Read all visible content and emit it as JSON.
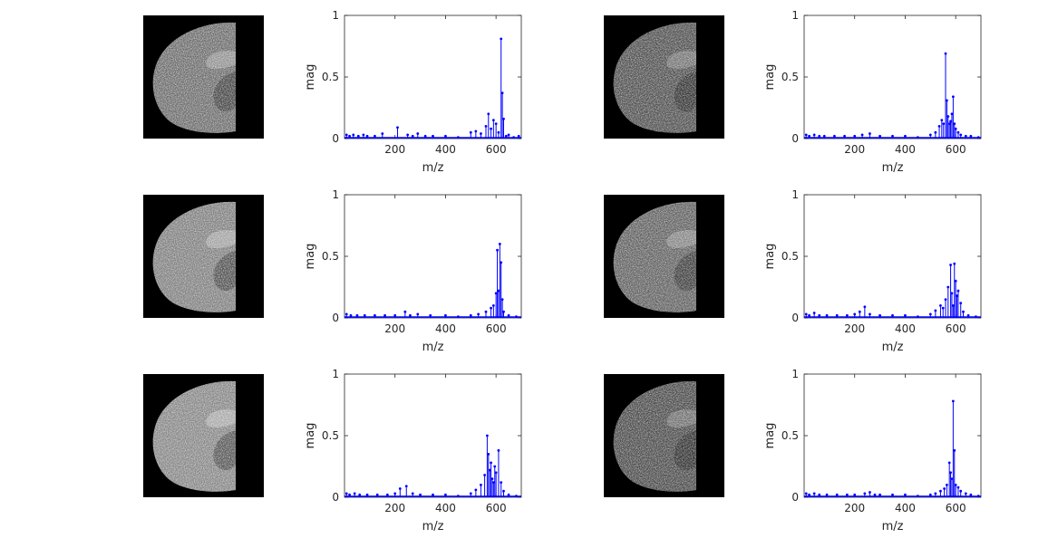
{
  "figure": {
    "panel_count": 6,
    "image_description_names": [
      "brain-slice-1",
      "brain-slice-2",
      "brain-slice-3",
      "brain-slice-4",
      "brain-slice-5",
      "brain-slice-6"
    ]
  },
  "axis_text": {
    "xlabel": "m/z",
    "ylabel": "mag",
    "xticks": [
      200,
      400,
      600
    ],
    "yticks": [
      0,
      0.5,
      1
    ],
    "ytick_labels": [
      "0",
      "0.5",
      "1"
    ]
  },
  "colors": {
    "stem": "#0000ff",
    "axis": "#262626",
    "image_bg": "#000000"
  },
  "chart_data": [
    {
      "type": "line",
      "style": "stem",
      "title": "",
      "xlabel": "m/z",
      "ylabel": "mag",
      "xlim": [
        0,
        700
      ],
      "ylim": [
        0,
        1
      ],
      "series": [
        {
          "x": [
            8,
            20,
            35,
            55,
            75,
            90,
            120,
            150,
            210,
            250,
            270,
            290,
            320,
            350,
            400,
            450,
            500,
            520,
            540,
            560,
            570,
            580,
            590,
            600,
            610,
            620,
            625,
            630,
            640,
            650,
            670,
            690
          ],
          "y": [
            0.03,
            0.02,
            0.03,
            0.02,
            0.03,
            0.02,
            0.02,
            0.04,
            0.09,
            0.03,
            0.02,
            0.04,
            0.02,
            0.02,
            0.02,
            0.01,
            0.05,
            0.06,
            0.04,
            0.1,
            0.2,
            0.08,
            0.15,
            0.12,
            0.05,
            0.81,
            0.37,
            0.16,
            0.02,
            0.03,
            0.01,
            0.02
          ]
        }
      ]
    },
    {
      "type": "line",
      "style": "stem",
      "title": "",
      "xlabel": "m/z",
      "ylabel": "mag",
      "xlim": [
        0,
        700
      ],
      "ylim": [
        0,
        1
      ],
      "series": [
        {
          "x": [
            8,
            20,
            40,
            60,
            80,
            120,
            160,
            200,
            230,
            260,
            300,
            350,
            400,
            450,
            500,
            520,
            535,
            545,
            552,
            560,
            565,
            570,
            575,
            580,
            585,
            590,
            595,
            600,
            610,
            620,
            640,
            660,
            690
          ],
          "y": [
            0.03,
            0.02,
            0.03,
            0.02,
            0.02,
            0.02,
            0.02,
            0.02,
            0.03,
            0.04,
            0.02,
            0.02,
            0.02,
            0.01,
            0.03,
            0.05,
            0.1,
            0.15,
            0.12,
            0.69,
            0.31,
            0.18,
            0.12,
            0.14,
            0.2,
            0.34,
            0.12,
            0.08,
            0.05,
            0.03,
            0.02,
            0.02,
            0.01
          ]
        }
      ]
    },
    {
      "type": "line",
      "style": "stem",
      "title": "",
      "xlabel": "m/z",
      "ylabel": "mag",
      "xlim": [
        0,
        700
      ],
      "ylim": [
        0,
        1
      ],
      "series": [
        {
          "x": [
            8,
            25,
            50,
            80,
            120,
            160,
            200,
            240,
            260,
            290,
            340,
            400,
            450,
            500,
            530,
            560,
            580,
            590,
            600,
            605,
            610,
            615,
            620,
            625,
            630,
            650,
            680
          ],
          "y": [
            0.03,
            0.02,
            0.02,
            0.02,
            0.02,
            0.02,
            0.02,
            0.05,
            0.02,
            0.03,
            0.02,
            0.02,
            0.01,
            0.02,
            0.03,
            0.05,
            0.08,
            0.1,
            0.2,
            0.55,
            0.22,
            0.6,
            0.45,
            0.15,
            0.05,
            0.02,
            0.01
          ]
        }
      ]
    },
    {
      "type": "line",
      "style": "stem",
      "title": "",
      "xlabel": "m/z",
      "ylabel": "mag",
      "xlim": [
        0,
        700
      ],
      "ylim": [
        0,
        1
      ],
      "series": [
        {
          "x": [
            8,
            20,
            40,
            60,
            90,
            130,
            170,
            200,
            220,
            240,
            260,
            300,
            350,
            400,
            450,
            500,
            520,
            540,
            550,
            560,
            570,
            580,
            585,
            590,
            595,
            600,
            605,
            610,
            620,
            630,
            650,
            680
          ],
          "y": [
            0.03,
            0.02,
            0.04,
            0.02,
            0.02,
            0.02,
            0.02,
            0.03,
            0.05,
            0.09,
            0.03,
            0.02,
            0.02,
            0.02,
            0.01,
            0.03,
            0.06,
            0.1,
            0.08,
            0.15,
            0.25,
            0.43,
            0.2,
            0.1,
            0.44,
            0.3,
            0.18,
            0.22,
            0.12,
            0.05,
            0.02,
            0.01
          ]
        }
      ]
    },
    {
      "type": "line",
      "style": "stem",
      "title": "",
      "xlabel": "m/z",
      "ylabel": "mag",
      "xlim": [
        0,
        700
      ],
      "ylim": [
        0,
        1
      ],
      "series": [
        {
          "x": [
            8,
            20,
            40,
            60,
            90,
            130,
            170,
            200,
            220,
            245,
            270,
            300,
            350,
            400,
            450,
            500,
            520,
            540,
            555,
            565,
            570,
            575,
            580,
            585,
            590,
            595,
            600,
            610,
            620,
            630,
            650,
            680
          ],
          "y": [
            0.03,
            0.02,
            0.03,
            0.02,
            0.02,
            0.02,
            0.02,
            0.03,
            0.07,
            0.09,
            0.03,
            0.02,
            0.02,
            0.02,
            0.01,
            0.03,
            0.06,
            0.1,
            0.18,
            0.5,
            0.35,
            0.22,
            0.28,
            0.15,
            0.12,
            0.25,
            0.2,
            0.38,
            0.12,
            0.05,
            0.02,
            0.01
          ]
        }
      ]
    },
    {
      "type": "line",
      "style": "stem",
      "title": "",
      "xlabel": "m/z",
      "ylabel": "mag",
      "xlim": [
        0,
        700
      ],
      "ylim": [
        0,
        1
      ],
      "series": [
        {
          "x": [
            8,
            20,
            40,
            60,
            90,
            130,
            170,
            200,
            240,
            260,
            280,
            300,
            350,
            400,
            450,
            500,
            520,
            540,
            555,
            565,
            575,
            580,
            585,
            590,
            595,
            600,
            610,
            620,
            640,
            660,
            690
          ],
          "y": [
            0.03,
            0.02,
            0.03,
            0.02,
            0.02,
            0.02,
            0.02,
            0.02,
            0.03,
            0.04,
            0.02,
            0.02,
            0.02,
            0.02,
            0.01,
            0.02,
            0.03,
            0.05,
            0.07,
            0.1,
            0.28,
            0.2,
            0.15,
            0.78,
            0.38,
            0.1,
            0.08,
            0.05,
            0.03,
            0.02,
            0.01
          ]
        }
      ]
    }
  ]
}
